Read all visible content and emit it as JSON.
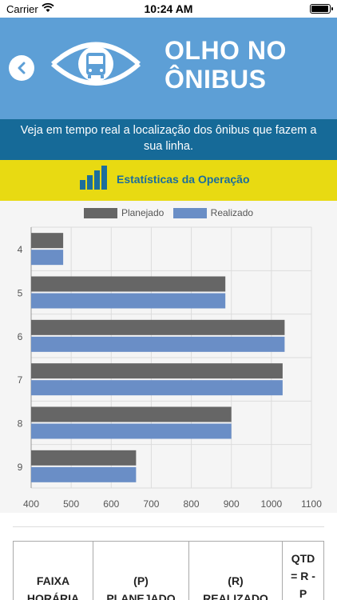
{
  "status_bar": {
    "carrier": "Carrier",
    "time": "10:24 AM",
    "battery_level": 0.95
  },
  "header": {
    "brand_line1": "OLHO NO",
    "brand_line2": "ÔNIBUS"
  },
  "subtitle": {
    "line1": "Veja em tempo real a localização dos ônibus que fazem a",
    "line2": "sua linha."
  },
  "stats_bar": {
    "title": "Estatísticas da Operação"
  },
  "colors": {
    "header": "#5d9fd6",
    "band": "#166a98",
    "stats_bar": "#e8da12",
    "planejado": "#666666",
    "realizado": "#6a8ec6"
  },
  "chart_data": {
    "type": "bar",
    "orientation": "horizontal",
    "categories": [
      "4",
      "5",
      "6",
      "7",
      "8",
      "9"
    ],
    "series": [
      {
        "name": "Planejado",
        "values": [
          480,
          885,
          1033,
          1028,
          900,
          662
        ]
      },
      {
        "name": "Realizado",
        "values": [
          480,
          885,
          1033,
          1028,
          900,
          662
        ]
      }
    ],
    "x_ticks": [
      "400",
      "500",
      "600",
      "700",
      "800",
      "900",
      "1000",
      "1100"
    ],
    "xlim": [
      400,
      1100
    ],
    "legend": "top-center",
    "grid": true
  },
  "table": {
    "headers": [
      {
        "line1": "FAIXA",
        "line2": "HORÁRIA"
      },
      {
        "line1": "(P)",
        "line2": "PLANEJADO"
      },
      {
        "line1": "(R)",
        "line2": "REALIZADO"
      },
      {
        "line1": "QTD",
        "line2": "= R -",
        "line3": "P"
      }
    ]
  }
}
